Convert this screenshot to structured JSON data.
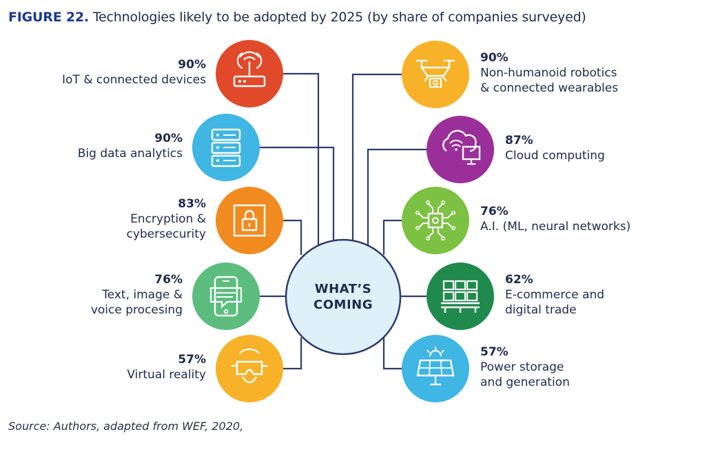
{
  "title": {
    "figure": "FIGURE 22.",
    "text": "Technologies likely to be adopted by 2025 (by share of companies surveyed)"
  },
  "center": {
    "line1": "WHAT’S",
    "line2": "COMING",
    "color": "#dff1f8"
  },
  "left_items": [
    {
      "pct": "90%",
      "label_lines": [
        "IoT & connected devices"
      ],
      "color": "#e04a2b",
      "icon": "router-icon"
    },
    {
      "pct": "90%",
      "label_lines": [
        "Big data analytics"
      ],
      "color": "#3fb6e3",
      "icon": "server-icon"
    },
    {
      "pct": "83%",
      "label_lines": [
        "Encryption &",
        "cybersecurity"
      ],
      "color": "#f18b1f",
      "icon": "lock-icon"
    },
    {
      "pct": "76%",
      "label_lines": [
        "Text, image &",
        "voice procesing"
      ],
      "color": "#5cbd7e",
      "icon": "phone-chat-icon"
    },
    {
      "pct": "57%",
      "label_lines": [
        "Virtual reality"
      ],
      "color": "#f7b229",
      "icon": "vr-headset-icon"
    }
  ],
  "right_items": [
    {
      "pct": "90%",
      "label_lines": [
        "Non-humanoid robotics",
        "& connected wearables"
      ],
      "color": "#f7b229",
      "icon": "drone-icon"
    },
    {
      "pct": "87%",
      "label_lines": [
        "Cloud computing"
      ],
      "color": "#9b2f9a",
      "icon": "cloud-computer-icon"
    },
    {
      "pct": "76%",
      "label_lines": [
        "A.I. (ML, neural networks)"
      ],
      "color": "#7cc142",
      "icon": "chip-icon"
    },
    {
      "pct": "62%",
      "label_lines": [
        "E-commerce and",
        "digital trade"
      ],
      "color": "#1f8a4c",
      "icon": "warehouse-icon"
    },
    {
      "pct": "57%",
      "label_lines": [
        "Power storage",
        "and generation"
      ],
      "color": "#3fb6e3",
      "icon": "solar-panel-icon"
    }
  ],
  "source": "Source: Authors, adapted from WEF, 2020,",
  "line_color": "#2f3b6b"
}
